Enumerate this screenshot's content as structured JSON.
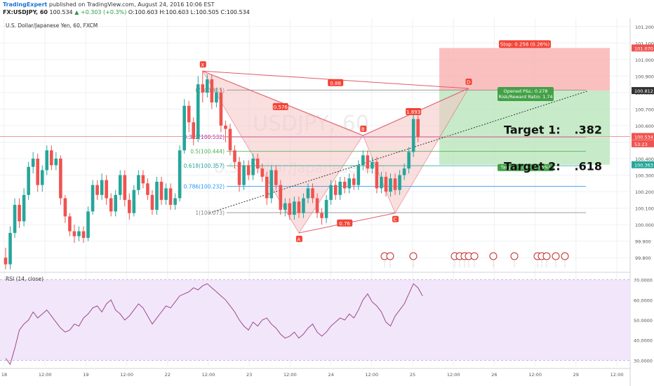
{
  "header": {
    "publisher": "TradingExpert",
    "published_text": "published on TradingView.com, August 24, 2016 10:06 EST",
    "symbol": "FX:USDJPY, 60",
    "last": "100.534",
    "change": "+0.303 (+0.3%)",
    "ohlc": "O:100.603 H:100.603 L:100.505 C:100.534"
  },
  "chart_title": "U.S. Dollar/Japanese Yen, 60, FXCM",
  "watermark": {
    "symbol": "USDJPY, 60",
    "name": "U.S. Dollar/Japanese Yen"
  },
  "colors": {
    "up": "#26a69a",
    "down": "#ef5350",
    "pattern_fill": "#f6c6c6",
    "pattern_line": "#e05d6a",
    "stop_zone": "#f9b0b0",
    "target_zone": "#b9e6bb",
    "rsi_band": "#f2e6fb",
    "rsi_line": "#9c4a8a"
  },
  "chart_data": [
    {
      "type": "candlestick",
      "title": "U.S. Dollar/Japanese Yen, 60, FXCM",
      "ylim": [
        99.72,
        101.25
      ],
      "y_ticks": [
        "101.200",
        "101.100",
        "101.000",
        "100.900",
        "100.800",
        "100.700",
        "100.600",
        "100.500",
        "100.400",
        "100.300",
        "100.200",
        "100.100",
        "100.000",
        "99.900",
        "99.800"
      ],
      "x_ticks": [
        "18",
        "12:00",
        "19",
        "12:00",
        "22",
        "12:00",
        "23",
        "12:00",
        "24",
        "12:00",
        "25",
        "12:00",
        "26",
        "12:00",
        "29",
        "12:00"
      ],
      "price_labels": [
        {
          "text": "101.070",
          "value": 101.07,
          "color": "#ef5350"
        },
        {
          "text": "100.812",
          "value": 100.812,
          "color": "#333333"
        },
        {
          "text": "100.534",
          "value": 100.534,
          "color": "#ef5350"
        },
        {
          "text": "53:23",
          "value": 100.49,
          "color": "#ef5350"
        },
        {
          "text": "100.363",
          "value": 100.363,
          "color": "#26a69a"
        }
      ],
      "harmonic_pattern": {
        "points": [
          {
            "label": "X",
            "bar": 43,
            "price": 100.93
          },
          {
            "label": "A",
            "bar": 64,
            "price": 99.95
          },
          {
            "label": "B",
            "bar": 78,
            "price": 100.54
          },
          {
            "label": "C",
            "bar": 85,
            "price": 100.07
          },
          {
            "label": "D",
            "bar": 101,
            "price": 100.825
          }
        ],
        "ratios": [
          {
            "text": "0.576",
            "bar": 60,
            "price": 100.715
          },
          {
            "text": "0.88",
            "bar": 72,
            "price": 100.86
          },
          {
            "text": "0.76",
            "bar": 74,
            "price": 100.01
          },
          {
            "text": "1.693",
            "bar": 89,
            "price": 100.685
          }
        ]
      },
      "fib_levels": [
        {
          "label": "0(100.815)",
          "price": 100.815,
          "color": "#888888"
        },
        {
          "label": "0.382(100.532)",
          "price": 100.532,
          "color": "#9c27b0"
        },
        {
          "label": "0.5(100.444)",
          "price": 100.444,
          "color": "#4caf50"
        },
        {
          "label": "0.618(100.357)",
          "price": 100.357,
          "color": "#26a69a"
        },
        {
          "label": "0.786(100.232)",
          "price": 100.232,
          "color": "#2196f3"
        },
        {
          "label": "1(100.073)",
          "price": 100.073,
          "color": "#888888"
        }
      ],
      "position": {
        "stop_label": "Stop: 0.258 (0.26%)",
        "opened_label": "Opened P&L: 0.278",
        "rr_label": "Risk/Reward Ratio: 1.74",
        "target_label": "Target: 0.449 (0.45%)",
        "entry": 100.812,
        "stop": 101.07,
        "target": 100.363
      },
      "annotations": [
        {
          "text": "Target 1:",
          "value": ".382"
        },
        {
          "text": "Target 2:",
          "value": ".618"
        }
      ],
      "candles": [
        [
          99.8,
          99.76,
          99.86,
          99.73
        ],
        [
          99.76,
          99.95,
          99.99,
          99.73
        ],
        [
          99.95,
          100.12,
          100.16,
          99.92
        ],
        [
          100.12,
          100.02,
          100.16,
          99.98
        ],
        [
          100.02,
          100.18,
          100.22,
          99.99
        ],
        [
          100.18,
          100.35,
          100.38,
          100.15
        ],
        [
          100.35,
          100.4,
          100.44,
          100.31
        ],
        [
          100.4,
          100.24,
          100.43,
          100.2
        ],
        [
          100.24,
          100.33,
          100.36,
          100.2
        ],
        [
          100.33,
          100.45,
          100.48,
          100.3
        ],
        [
          100.45,
          100.36,
          100.48,
          100.33
        ],
        [
          100.36,
          100.4,
          100.44,
          100.33
        ],
        [
          100.4,
          100.16,
          100.42,
          100.12
        ],
        [
          100.16,
          100.05,
          100.18,
          100.01
        ],
        [
          100.05,
          99.96,
          100.07,
          99.93
        ],
        [
          99.96,
          99.93,
          100.0,
          99.89
        ],
        [
          99.93,
          99.96,
          99.99,
          99.9
        ],
        [
          99.96,
          99.92,
          99.99,
          99.89
        ],
        [
          99.92,
          100.08,
          100.11,
          99.9
        ],
        [
          100.08,
          100.24,
          100.27,
          100.06
        ],
        [
          100.24,
          100.18,
          100.27,
          100.15
        ],
        [
          100.18,
          100.27,
          100.31,
          100.15
        ],
        [
          100.27,
          100.16,
          100.3,
          100.12
        ],
        [
          100.16,
          100.08,
          100.19,
          100.05
        ],
        [
          100.08,
          100.18,
          100.21,
          100.05
        ],
        [
          100.18,
          100.3,
          100.33,
          100.15
        ],
        [
          100.3,
          100.15,
          100.33,
          100.11
        ],
        [
          100.15,
          100.07,
          100.19,
          100.03
        ],
        [
          100.07,
          100.21,
          100.24,
          100.05
        ],
        [
          100.21,
          100.3,
          100.33,
          100.18
        ],
        [
          100.3,
          100.25,
          100.33,
          100.22
        ],
        [
          100.25,
          100.18,
          100.28,
          100.15
        ],
        [
          100.18,
          100.09,
          100.21,
          100.06
        ],
        [
          100.09,
          100.26,
          100.29,
          100.06
        ],
        [
          100.26,
          100.15,
          100.29,
          100.12
        ],
        [
          100.15,
          100.22,
          100.25,
          100.12
        ],
        [
          100.22,
          100.12,
          100.25,
          100.09
        ],
        [
          100.12,
          100.16,
          100.19,
          100.09
        ],
        [
          100.16,
          100.45,
          100.48,
          100.14
        ],
        [
          100.45,
          100.72,
          100.76,
          100.43
        ],
        [
          100.72,
          100.62,
          100.75,
          100.56
        ],
        [
          100.62,
          100.52,
          100.65,
          100.48
        ],
        [
          100.52,
          100.85,
          100.9,
          100.5
        ],
        [
          100.85,
          100.8,
          100.93,
          100.74
        ],
        [
          100.8,
          100.88,
          100.91,
          100.77
        ],
        [
          100.88,
          100.74,
          100.91,
          100.7
        ],
        [
          100.74,
          100.8,
          100.83,
          100.71
        ],
        [
          100.8,
          100.6,
          100.83,
          100.56
        ],
        [
          100.6,
          100.58,
          100.63,
          100.5
        ],
        [
          100.58,
          100.45,
          100.61,
          100.42
        ],
        [
          100.45,
          100.38,
          100.48,
          100.34
        ],
        [
          100.38,
          100.24,
          100.41,
          100.2
        ],
        [
          100.24,
          100.36,
          100.39,
          100.21
        ],
        [
          100.36,
          100.3,
          100.39,
          100.27
        ],
        [
          100.3,
          100.4,
          100.43,
          100.27
        ],
        [
          100.4,
          100.34,
          100.43,
          100.31
        ],
        [
          100.34,
          100.29,
          100.37,
          100.26
        ],
        [
          100.29,
          100.16,
          100.32,
          100.12
        ],
        [
          100.16,
          100.33,
          100.36,
          100.13
        ],
        [
          100.33,
          100.24,
          100.36,
          100.21
        ],
        [
          100.24,
          100.09,
          100.27,
          100.06
        ],
        [
          100.09,
          100.13,
          100.16,
          100.05
        ],
        [
          100.13,
          100.06,
          100.16,
          100.03
        ],
        [
          100.06,
          100.14,
          100.17,
          100.03
        ],
        [
          100.14,
          100.07,
          100.17,
          100.04
        ],
        [
          100.07,
          100.16,
          100.19,
          100.04
        ],
        [
          100.16,
          100.22,
          100.25,
          100.13
        ],
        [
          100.22,
          100.16,
          100.25,
          100.13
        ],
        [
          100.16,
          100.07,
          100.19,
          100.04
        ],
        [
          100.07,
          100.04,
          100.1,
          100.0
        ],
        [
          100.04,
          100.15,
          100.18,
          100.01
        ],
        [
          100.15,
          100.24,
          100.27,
          100.12
        ],
        [
          100.24,
          100.18,
          100.27,
          100.15
        ],
        [
          100.18,
          100.26,
          100.29,
          100.15
        ],
        [
          100.26,
          100.22,
          100.29,
          100.19
        ],
        [
          100.22,
          100.28,
          100.31,
          100.19
        ],
        [
          100.28,
          100.24,
          100.31,
          100.21
        ],
        [
          100.24,
          100.36,
          100.39,
          100.21
        ],
        [
          100.36,
          100.42,
          100.45,
          100.33
        ],
        [
          100.42,
          100.34,
          100.45,
          100.31
        ],
        [
          100.34,
          100.38,
          100.41,
          100.31
        ],
        [
          100.38,
          100.22,
          100.41,
          100.19
        ],
        [
          100.22,
          100.29,
          100.32,
          100.19
        ],
        [
          100.29,
          100.2,
          100.32,
          100.17
        ],
        [
          100.2,
          100.28,
          100.31,
          100.17
        ],
        [
          100.28,
          100.21,
          100.31,
          100.18
        ],
        [
          100.21,
          100.3,
          100.33,
          100.18
        ],
        [
          100.3,
          100.34,
          100.37,
          100.27
        ],
        [
          100.34,
          100.44,
          100.47,
          100.31
        ],
        [
          100.44,
          100.64,
          100.67,
          100.41
        ],
        [
          100.64,
          100.53,
          100.67,
          100.5
        ]
      ]
    },
    {
      "type": "line",
      "title": "RSI (14, close)",
      "ylim": [
        27,
        73
      ],
      "y_ticks": [
        "70.0000",
        "60.0000",
        "50.0000",
        "40.0000",
        "30.0000"
      ],
      "band": [
        30,
        70
      ],
      "series": [
        {
          "values": [
            31,
            28,
            36,
            45,
            48,
            50,
            54,
            51,
            53,
            55,
            52,
            49,
            46,
            44,
            45,
            48,
            47,
            51,
            53,
            56,
            57,
            54,
            58,
            60,
            55,
            53,
            50,
            52,
            55,
            58,
            56,
            52,
            48,
            51,
            54,
            57,
            56,
            59,
            62,
            63,
            64,
            66,
            65,
            67,
            68,
            66,
            64,
            62,
            60,
            57,
            54,
            50,
            47,
            45,
            49,
            47,
            50,
            51,
            48,
            46,
            43,
            41,
            42,
            44,
            41,
            43,
            46,
            48,
            44,
            42,
            44,
            47,
            49,
            51,
            50,
            53,
            51,
            55,
            60,
            63,
            59,
            57,
            54,
            49,
            47,
            52,
            55,
            58,
            63,
            68,
            66,
            62
          ]
        }
      ]
    }
  ]
}
